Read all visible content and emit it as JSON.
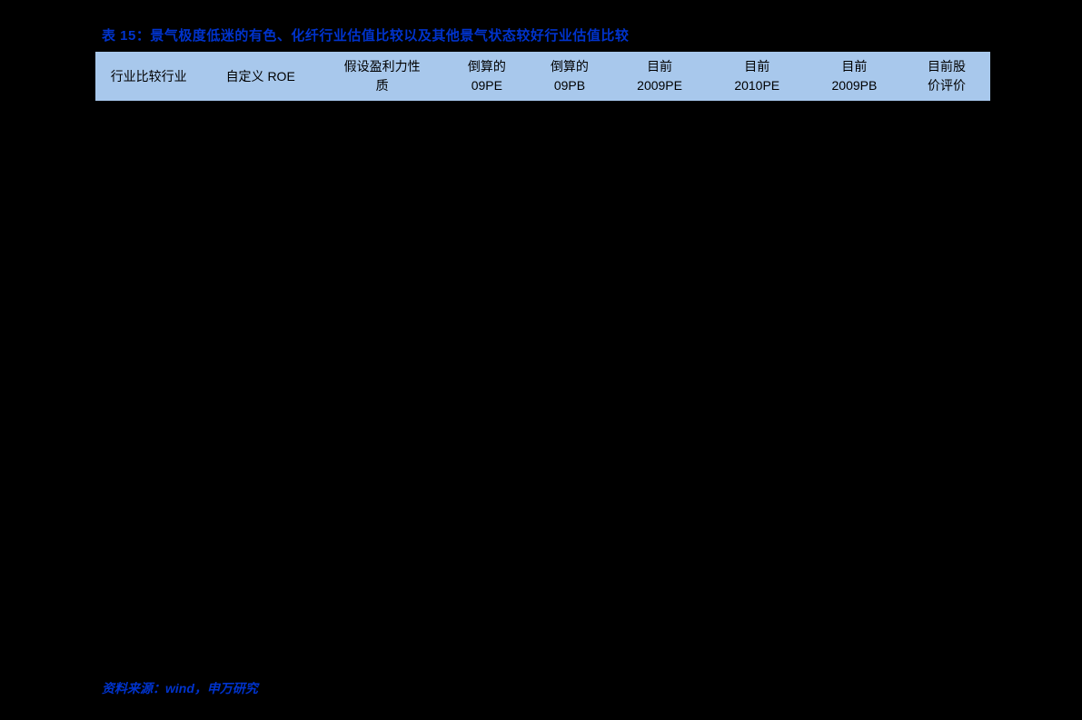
{
  "title": "表 15：景气极度低迷的有色、化纤行业估值比较以及其他景气状态较好行业估值比较",
  "table": {
    "type": "table",
    "header_bg": "#a8c8ec",
    "border_color": "#000000",
    "columns": [
      {
        "line1": "行业比较行业",
        "line2": ""
      },
      {
        "line1": "自定义 ROE",
        "line2": ""
      },
      {
        "line1": "假设盈利力性",
        "line2": "质"
      },
      {
        "line1": "倒算的",
        "line2": "09PE"
      },
      {
        "line1": "倒算的",
        "line2": "09PB"
      },
      {
        "line1": "目前",
        "line2": "2009PE"
      },
      {
        "line1": "目前",
        "line2": "2010PE"
      },
      {
        "line1": "目前",
        "line2": "2009PB"
      },
      {
        "line1": "目前股",
        "line2": "价评价"
      }
    ]
  },
  "source": "资料来源：wind，申万研究",
  "colors": {
    "background": "#000000",
    "title_color": "#0033cc",
    "header_bg": "#a8c8ec",
    "source_color": "#0033cc"
  }
}
